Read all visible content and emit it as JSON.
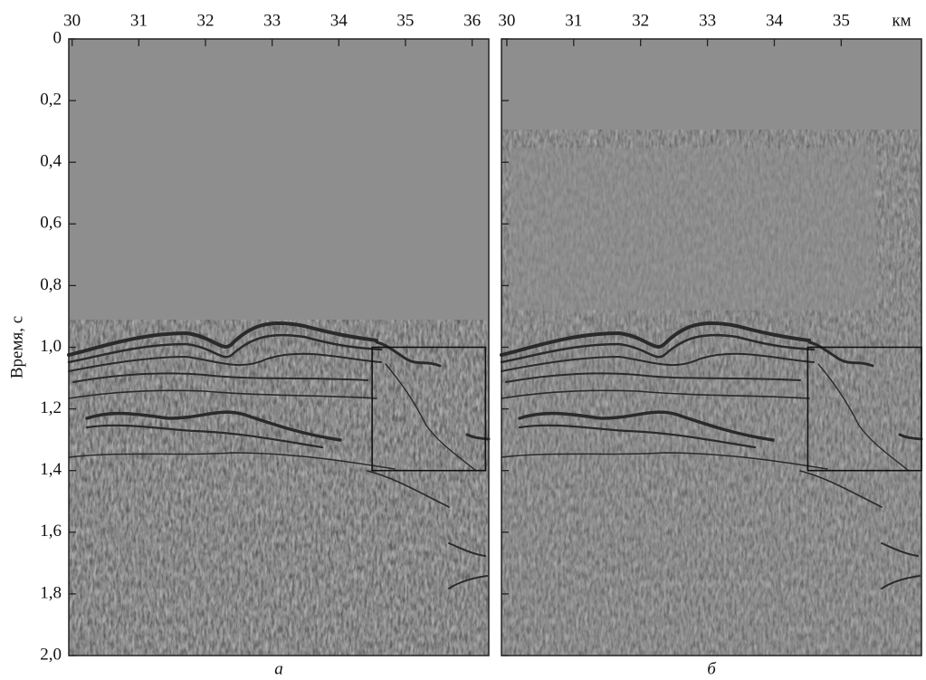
{
  "chart_data": [
    {
      "type": "seismic",
      "ylabel": "Время, с",
      "panel_label": "а",
      "xlim": [
        29.95,
        36.25
      ],
      "xticks": [
        30,
        31,
        32,
        33,
        34,
        35,
        36
      ],
      "ylim": [
        0,
        2.0
      ],
      "yticks": [
        0,
        {
          "value": 0.2,
          "label": "0,2"
        },
        {
          "value": 0.4,
          "label": "0,4"
        },
        {
          "value": 0.6,
          "label": "0,6"
        },
        {
          "value": 0.8,
          "label": "0,8"
        },
        {
          "value": 1.0,
          "label": "1,0"
        },
        {
          "value": 1.2,
          "label": "1,2"
        },
        {
          "value": 1.4,
          "label": "1,4"
        },
        {
          "value": 1.6,
          "label": "1,6"
        },
        {
          "value": 1.8,
          "label": "1,8"
        },
        {
          "value": 2.0,
          "label": "2,0"
        }
      ],
      "box": {
        "x": [
          34.5,
          36.2
        ],
        "y": [
          1.0,
          1.4
        ]
      }
    },
    {
      "type": "seismic",
      "panel_label": "б",
      "xlabel": "км",
      "xlim": [
        29.92,
        36.2
      ],
      "xticks": [
        30,
        31,
        32,
        33,
        34,
        35
      ],
      "ylim": [
        0,
        2.0
      ],
      "yticks": [
        0,
        0.2,
        0.4,
        0.6,
        0.8,
        1.0,
        1.2,
        1.4,
        1.6,
        1.8,
        2.0
      ],
      "box": {
        "x": [
          34.5,
          36.2
        ],
        "y": [
          1.0,
          1.4
        ]
      }
    }
  ]
}
